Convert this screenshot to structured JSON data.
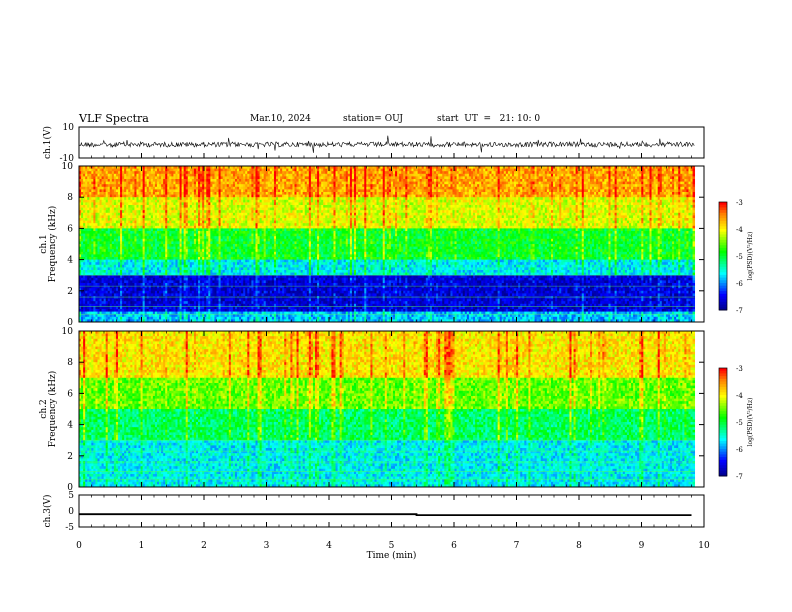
{
  "header": {
    "title": "VLF Spectra",
    "date": "Mar.10, 2024",
    "station": "station= OUJ",
    "start_time": "start  UT  =   21: 10: 0"
  },
  "chart_data": [
    {
      "type": "line",
      "name": "ch1-waveform",
      "ylabel": "ch.1(V)",
      "ylim": [
        -10,
        10
      ],
      "yticks": [
        "10",
        "-10"
      ],
      "x_range_min": [
        0,
        9.8
      ],
      "description_values": "noise waveform around 0 V with sparse spikes"
    },
    {
      "type": "heatmap",
      "name": "ch1-spectrogram",
      "ylabel": "ch.1\nFrequency (kHz)",
      "ylim": [
        0,
        10
      ],
      "yticks": [
        "0",
        "2",
        "4",
        "6",
        "8",
        "10"
      ],
      "x_range_min": [
        0,
        9.8
      ],
      "colorbar": {
        "label": "log(PSD)(V²/Hz)",
        "range": [
          -7,
          -3
        ],
        "ticks": [
          "-3",
          "-4",
          "-5",
          "-6",
          "-7"
        ]
      },
      "bands_khz": [
        {
          "from": 0,
          "to": 0.6,
          "level": -5.8
        },
        {
          "from": 0.6,
          "to": 3.0,
          "level": -6.6
        },
        {
          "from": 3.0,
          "to": 4.0,
          "level": -5.6
        },
        {
          "from": 4.0,
          "to": 6.0,
          "level": -4.9
        },
        {
          "from": 6.0,
          "to": 8.0,
          "level": -4.1
        },
        {
          "from": 8.0,
          "to": 10.0,
          "level": -3.6
        }
      ]
    },
    {
      "type": "heatmap",
      "name": "ch2-spectrogram",
      "ylabel": "ch.2\nFrequency (kHz)",
      "ylim": [
        0,
        10
      ],
      "yticks": [
        "0",
        "2",
        "4",
        "6",
        "8",
        "10"
      ],
      "x_range_min": [
        0,
        9.8
      ],
      "colorbar": {
        "label": "log(PSD)(V²/Hz)",
        "range": [
          -7,
          -3
        ],
        "ticks": [
          "-3",
          "-4",
          "-5",
          "-6",
          "-7"
        ]
      },
      "bands_khz": [
        {
          "from": 0,
          "to": 3.0,
          "level": -5.6
        },
        {
          "from": 3.0,
          "to": 5.0,
          "level": -5.1
        },
        {
          "from": 5.0,
          "to": 7.0,
          "level": -4.5
        },
        {
          "from": 7.0,
          "to": 10.0,
          "level": -3.9
        }
      ]
    },
    {
      "type": "line",
      "name": "ch3-signal",
      "ylabel": "ch.3(V)",
      "ylim": [
        -5,
        5
      ],
      "yticks": [
        "5",
        "0",
        "-5"
      ],
      "x": [
        0,
        5.4,
        5.4,
        9.8
      ],
      "y": [
        -1.0,
        -1.0,
        -1.3,
        -1.3
      ],
      "xlabel": "Time (min)",
      "xlim": [
        0,
        10
      ],
      "xticks": [
        "0",
        "1",
        "2",
        "3",
        "4",
        "5",
        "6",
        "7",
        "8",
        "9",
        "10"
      ]
    }
  ],
  "colors": {
    "high": "#ff0000",
    "mid_high": "#ffff00",
    "mid": "#00ff00",
    "mid_low": "#00ffff",
    "low": "#0000ff",
    "lowest": "#000080"
  }
}
